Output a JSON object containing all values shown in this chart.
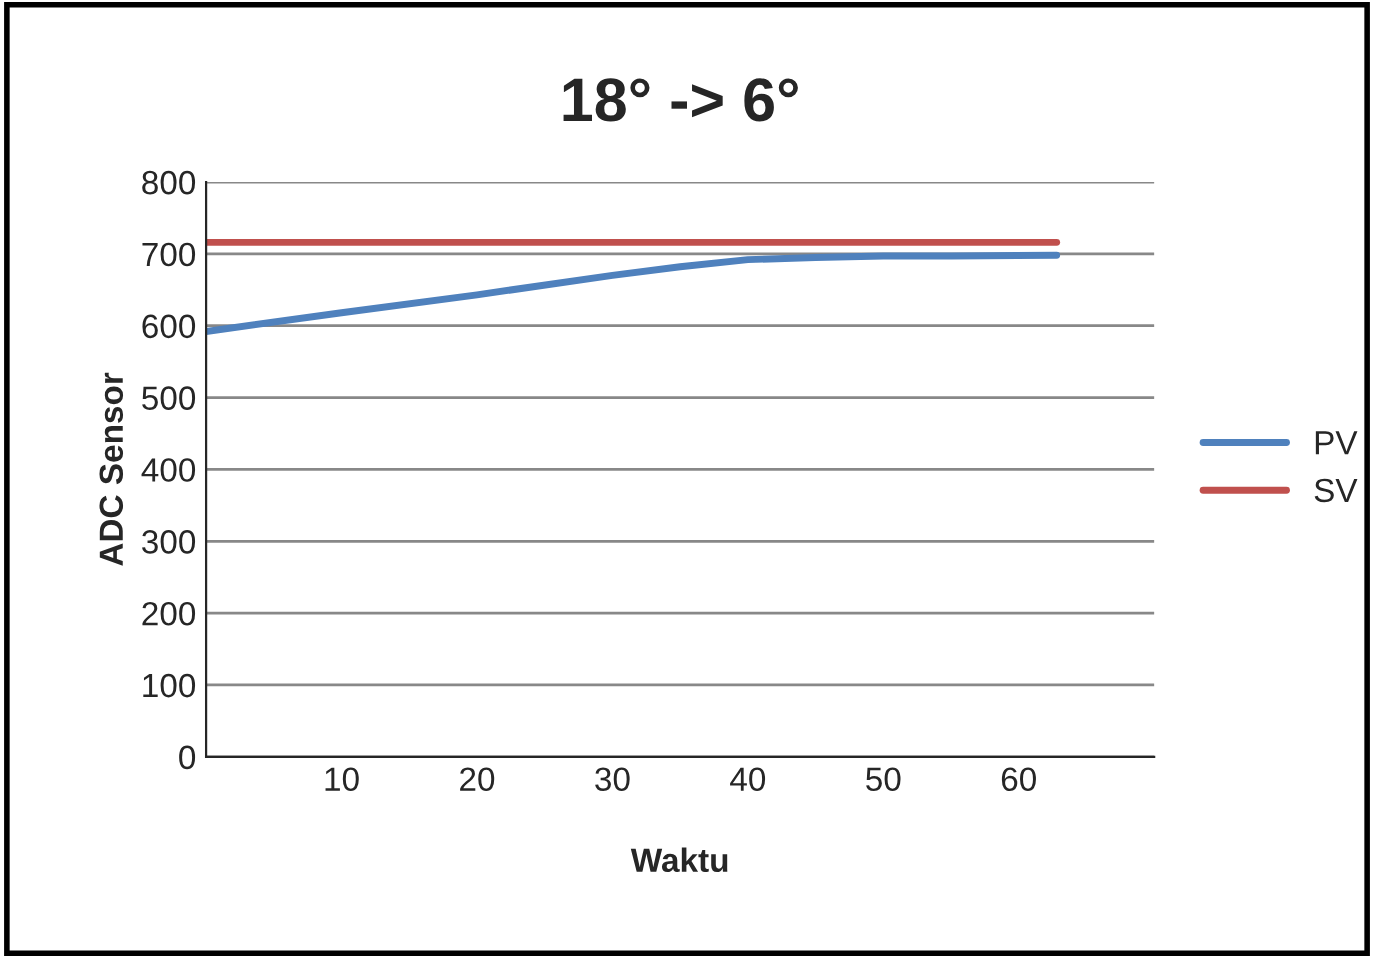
{
  "chart_data": {
    "type": "line",
    "title": "18° -> 6°",
    "xlabel": "Waktu",
    "ylabel": "ADC Sensor",
    "xlim": [
      0,
      70
    ],
    "xticks": [
      10,
      20,
      30,
      40,
      50,
      60
    ],
    "ylim": [
      0,
      800
    ],
    "yticks": [
      0,
      100,
      200,
      300,
      400,
      500,
      600,
      700,
      800
    ],
    "grid": "y",
    "legend": "right",
    "marker": "none",
    "line_style": "solid",
    "series": [
      {
        "name": "PV",
        "color": "#4f81bd",
        "x": [
          0,
          10,
          20,
          30,
          35,
          40,
          45,
          50,
          55,
          62.8
        ],
        "values": [
          592,
          618,
          643,
          670,
          682,
          692,
          695,
          697,
          697,
          698
        ]
      },
      {
        "name": "SV",
        "color": "#c0504d",
        "x": [
          0,
          62.8
        ],
        "values": [
          716,
          716
        ]
      }
    ]
  }
}
